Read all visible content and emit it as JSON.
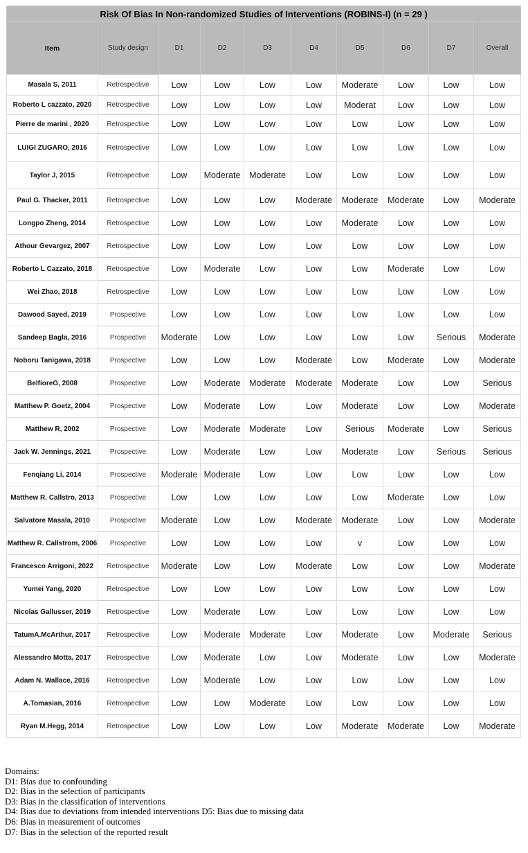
{
  "table": {
    "title": "Risk Of Bias In Non-randomized Studies of Interventions (ROBINS-I) (n = 29 )",
    "columns": [
      "Item",
      "Study design",
      "D1",
      "D2",
      "D3",
      "D4",
      "D5",
      "D6",
      "D7",
      "Overall"
    ],
    "rows": [
      {
        "item": "Masala S, 2011",
        "design": "Retrospective",
        "ratings": [
          "Low",
          "Low",
          "Low",
          "Low",
          "Moderate",
          "Low",
          "Low",
          "Low"
        ]
      },
      {
        "item": "Roberto L cazzato, 2020",
        "design": "Retrospective",
        "ratings": [
          "Low",
          "Low",
          "Low",
          "Low",
          "Moderat",
          "Low",
          "Low",
          "Low"
        ]
      },
      {
        "item": "Pierre de marini , 2020",
        "design": "Retrospective",
        "ratings": [
          "Low",
          "Low",
          "Low",
          "Low",
          "Low",
          "Low",
          "Low",
          "Low"
        ]
      },
      {
        "item": "LUIGI ZUGARO, 2016",
        "design": "Retrospective",
        "ratings": [
          "Low",
          "Low",
          "Low",
          "Low",
          "Low",
          "Low",
          "Low",
          "Low"
        ]
      },
      {
        "item": "Taylor J, 2015",
        "design": "Retrospective",
        "ratings": [
          "Low",
          "Moderate",
          "Moderate",
          "Low",
          "Low",
          "Low",
          "Low",
          "Low"
        ]
      },
      {
        "item": "Paul G. Thacker, 2011",
        "design": "Retrospective",
        "ratings": [
          "Low",
          "Low",
          "Low",
          "Moderate",
          "Moderate",
          "Moderate",
          "Low",
          "Moderate"
        ]
      },
      {
        "item": "Longpo Zheng, 2014",
        "design": "Retrospective",
        "ratings": [
          "Low",
          "Low",
          "Low",
          "Low",
          "Moderate",
          "Low",
          "Low",
          "Low"
        ]
      },
      {
        "item": "Athour Gevargez, 2007",
        "design": "Retrospective",
        "ratings": [
          "Low",
          "Low",
          "Low",
          "Low",
          "Low",
          "Low",
          "Low",
          "Low"
        ]
      },
      {
        "item": "Roberto L Cazzato, 2018",
        "design": "Retrospective",
        "ratings": [
          "Low",
          "Moderate",
          "Low",
          "Low",
          "Low",
          "Moderate",
          "Low",
          "Low"
        ]
      },
      {
        "item": "Wei Zhao, 2018",
        "design": "Retrospective",
        "ratings": [
          "Low",
          "Low",
          "Low",
          "Low",
          "Low",
          "Low",
          "Low",
          "Low"
        ]
      },
      {
        "item": "Dawood Sayed, 2019",
        "design": "Prospective",
        "ratings": [
          "Low",
          "Low",
          "Low",
          "Low",
          "Low",
          "Low",
          "Low",
          "Low"
        ]
      },
      {
        "item": "Sandeep Bagla, 2016",
        "design": "Prospective",
        "ratings": [
          "Moderate",
          "Low",
          "Low",
          "Low",
          "Low",
          "Low",
          "Serious",
          "Moderate"
        ]
      },
      {
        "item": "Noboru Tanigawa, 2018",
        "design": "Prospective",
        "ratings": [
          "Low",
          "Low",
          "Low",
          "Moderate",
          "Low",
          "Moderate",
          "Low",
          "Moderate"
        ]
      },
      {
        "item": "BelfioreG, 2008",
        "design": "Prospective",
        "ratings": [
          "Low",
          "Moderate",
          "Moderate",
          "Moderate",
          "Moderate",
          "Low",
          "Low",
          "Serious"
        ]
      },
      {
        "item": "Matthew P. Goetz, 2004",
        "design": "Prospective",
        "ratings": [
          "Low",
          "Moderate",
          "Low",
          "Low",
          "Moderate",
          "Low",
          "Low",
          "Moderate"
        ]
      },
      {
        "item": "Matthew R, 2002",
        "design": "Prospective",
        "ratings": [
          "Low",
          "Moderate",
          "Moderate",
          "Low",
          "Serious",
          "Moderate",
          "Low",
          "Serious"
        ]
      },
      {
        "item": "Jack W. Jennings, 2021",
        "design": "Prospective",
        "ratings": [
          "Low",
          "Moderate",
          "Low",
          "Low",
          "Moderate",
          "Low",
          "Serious",
          "Serious"
        ]
      },
      {
        "item": "Fenqiang Li, 2014",
        "design": "Prospective",
        "ratings": [
          "Moderate",
          "Moderate",
          "Low",
          "Low",
          "Low",
          "Low",
          "Low",
          "Low"
        ]
      },
      {
        "item": "Matthew R. Callstro, 2013",
        "design": "Prospective",
        "ratings": [
          "Low",
          "Low",
          "Low",
          "Low",
          "Low",
          "Moderate",
          "Low",
          "Low"
        ]
      },
      {
        "item": "Salvatore Masala, 2010",
        "design": "Prospective",
        "ratings": [
          "Moderate",
          "Low",
          "Low",
          "Moderate",
          "Moderate",
          "Low",
          "Low",
          "Moderate"
        ]
      },
      {
        "item": "Matthew R. Callstrom, 2006",
        "design": "Prospective",
        "ratings": [
          "Low",
          "Low",
          "Low",
          "Low",
          "v",
          "Low",
          "Low",
          "Low"
        ]
      },
      {
        "item": "Francesco Arrigoni, 2022",
        "design": "Retrospective",
        "ratings": [
          "Moderate",
          "Low",
          "Low",
          "Moderate",
          "Low",
          "Low",
          "Low",
          "Moderate"
        ]
      },
      {
        "item": "Yumei Yang, 2020",
        "design": "Retrospective",
        "ratings": [
          "Low",
          "Low",
          "Low",
          "Low",
          "Low",
          "Low",
          "Low",
          "Low"
        ]
      },
      {
        "item": "Nicolas Gallusser, 2019",
        "design": "Retrospective",
        "ratings": [
          "Low",
          "Moderate",
          "Low",
          "Low",
          "Low",
          "Low",
          "Low",
          "Low"
        ]
      },
      {
        "item": "TatumA.McArthur, 2017",
        "design": "Retrospective",
        "ratings": [
          "Low",
          "Moderate",
          "Moderate",
          "Low",
          "Moderate",
          "Low",
          "Moderate",
          "Serious"
        ]
      },
      {
        "item": "Alessandro Motta, 2017",
        "design": "Retrospective",
        "ratings": [
          "Low",
          "Moderate",
          "Low",
          "Low",
          "Moderate",
          "Low",
          "Low",
          "Moderate"
        ]
      },
      {
        "item": "Adam N. Wallace, 2016",
        "design": "Retrospective",
        "ratings": [
          "Low",
          "Moderate",
          "Low",
          "Low",
          "Low",
          "Low",
          "Low",
          "Low"
        ]
      },
      {
        "item": "A.Tomasian, 2016",
        "design": "Retrospective",
        "ratings": [
          "Low",
          "Low",
          "Moderate",
          "Low",
          "Low",
          "Low",
          "Low",
          "Low"
        ]
      },
      {
        "item": "Ryan M.Hegg, 2014",
        "design": "Retrospective",
        "ratings": [
          "Low",
          "Low",
          "Low",
          "Low",
          "Moderate",
          "Moderate",
          "Low",
          "Moderate"
        ]
      }
    ]
  },
  "legend": {
    "heading": "Domains:",
    "lines": [
      "D1: Bias due to confounding",
      "D2: Bias in the selection of participants",
      "D3: Bias in the classification of interventions",
      "D4: Bias due to deviations from intended interventions D5: Bias due to missing data",
      "D6: Bias in measurement of outcomes",
      "D7: Bias in the selection of the reported result"
    ]
  },
  "colors": {
    "header_bg": "#bababa",
    "grid_line": "#dcdcdc",
    "text": "#1a1a1a"
  }
}
